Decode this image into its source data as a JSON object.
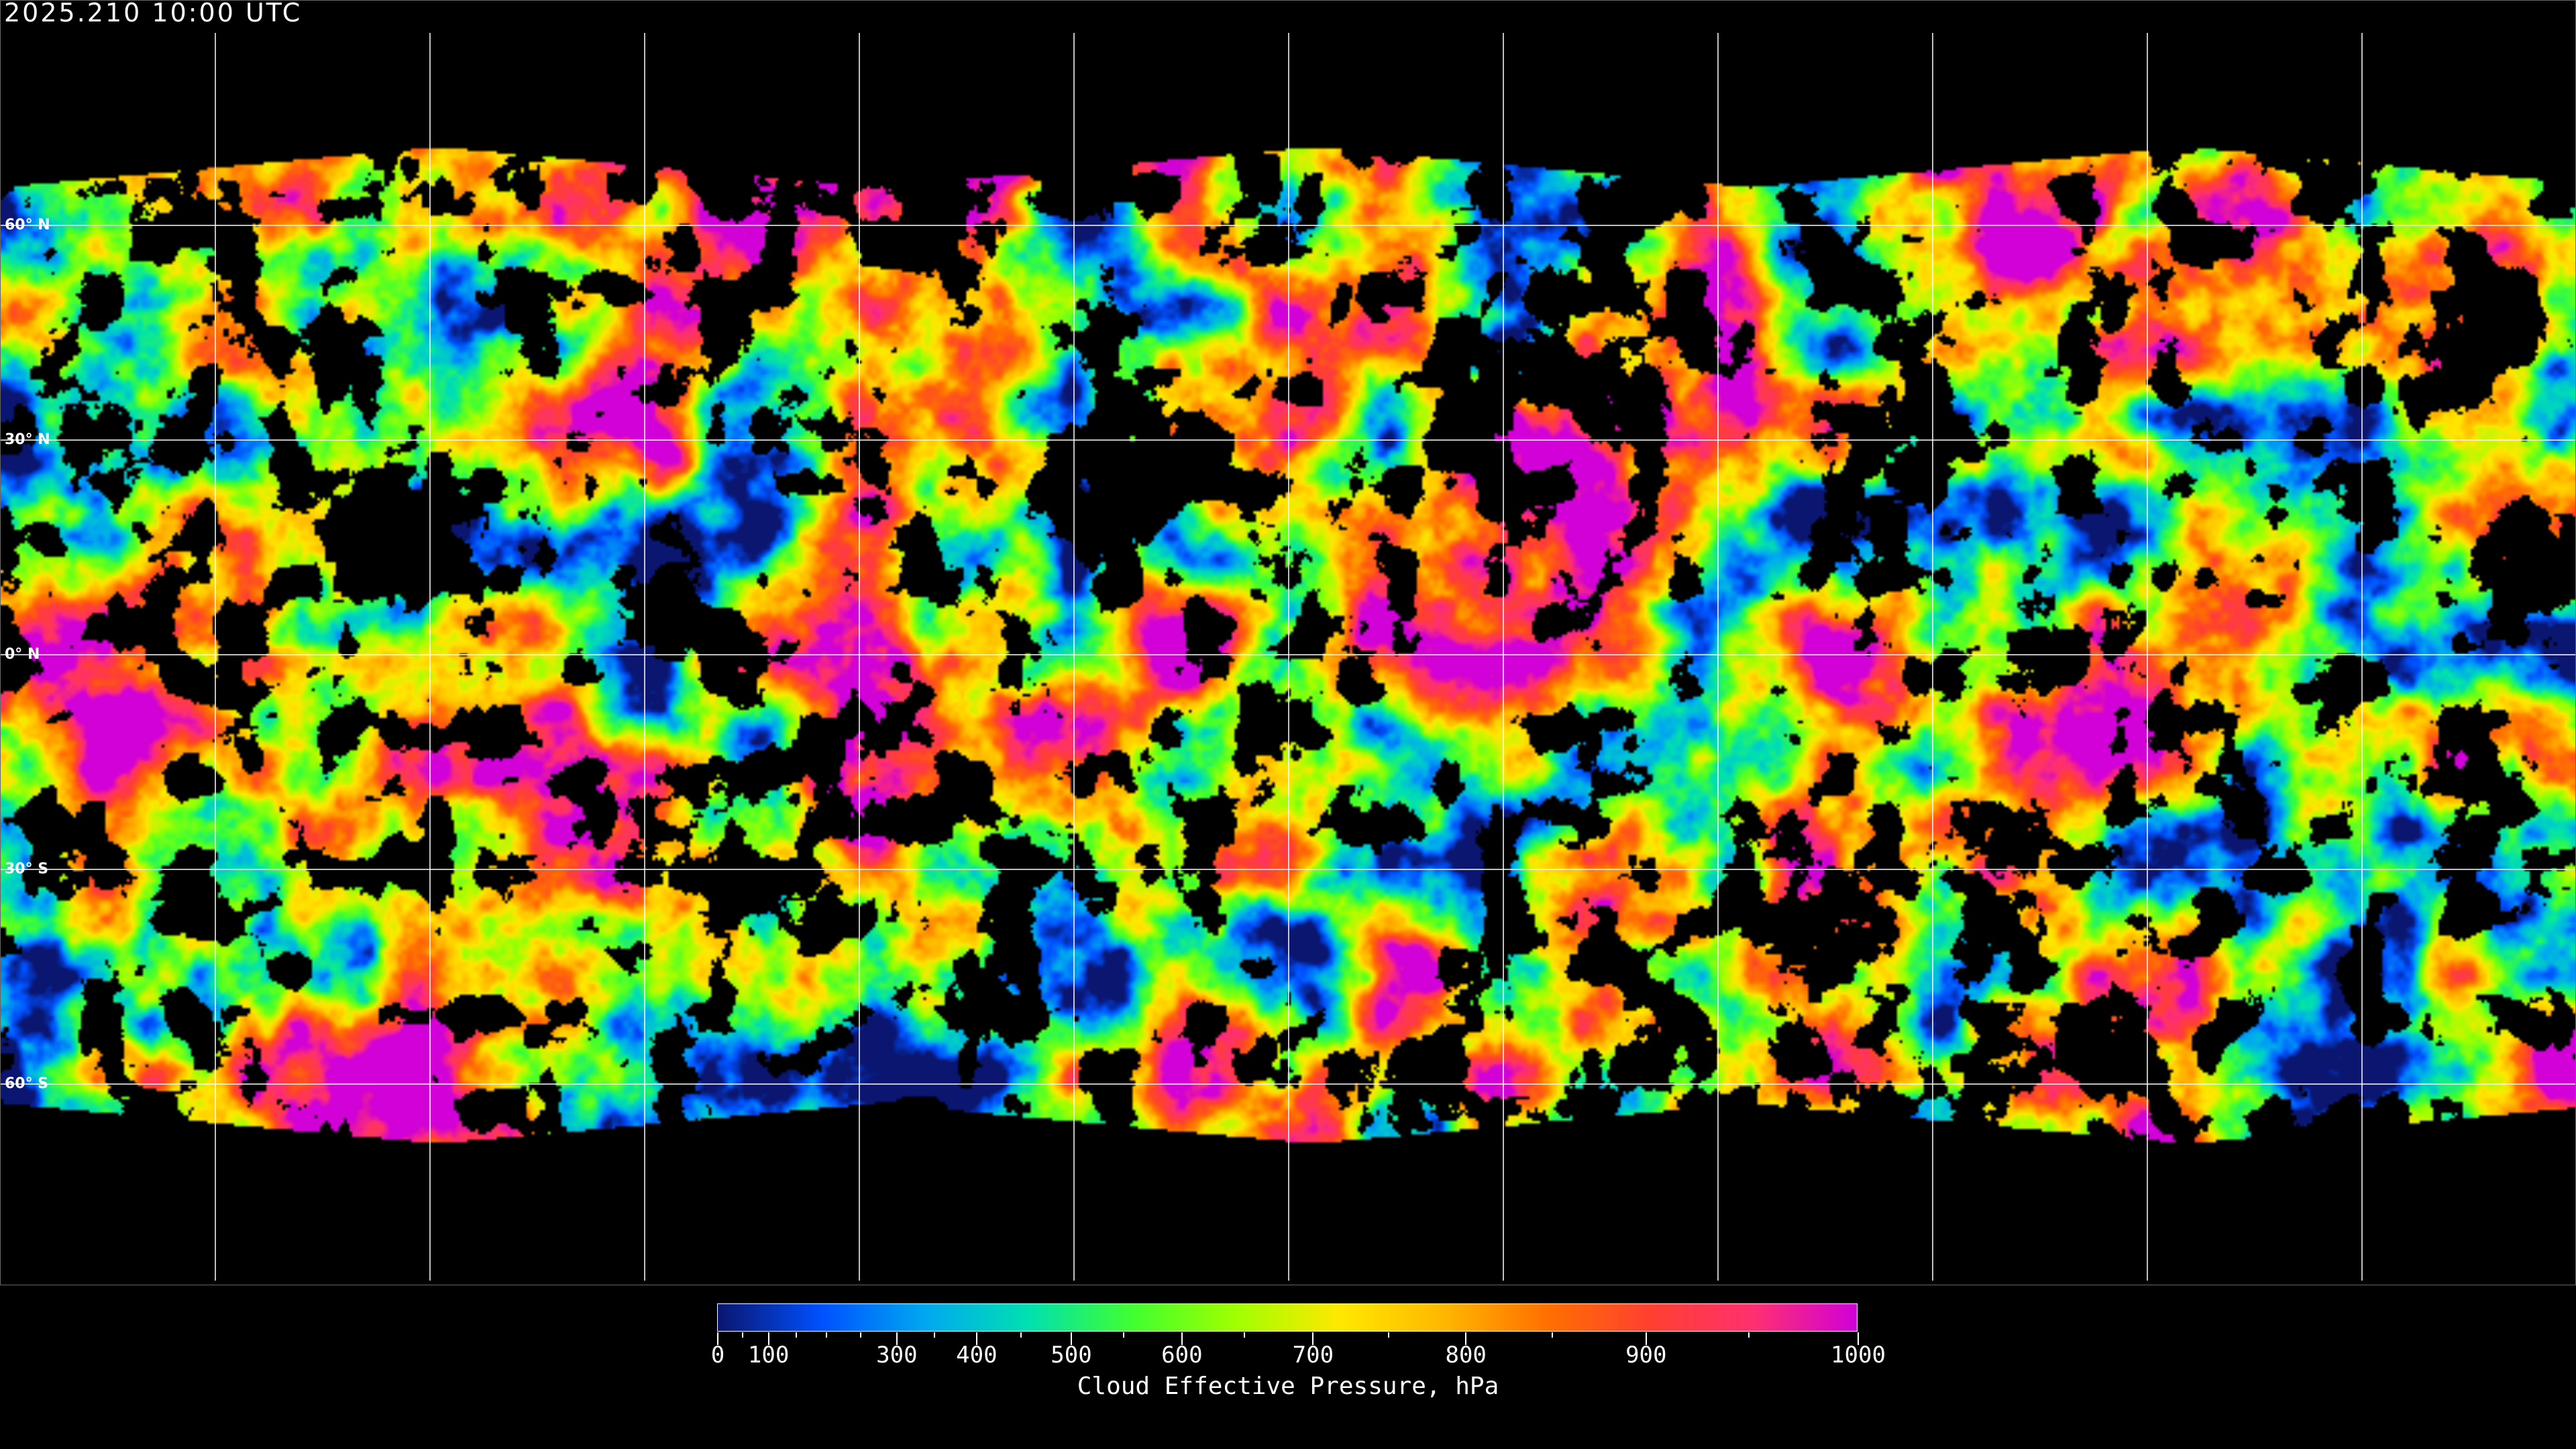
{
  "header": {
    "timestamp": "2025.210 10:00 UTC"
  },
  "map": {
    "projection": "equirectangular",
    "graticule": "white",
    "latitude_labels": [
      "60° N",
      "30° N",
      "0° N",
      "30° S",
      "60° S"
    ],
    "polar_regions": "no data (black)"
  },
  "colorbar": {
    "title": "Cloud Effective Pressure, hPa",
    "range": [
      0,
      1000
    ],
    "tick_labels": [
      "0",
      "100",
      "300",
      "400",
      "500",
      "600",
      "700",
      "800",
      "900",
      "1000"
    ],
    "colormap": [
      "#0a1670",
      "#0050ff",
      "#00a8f0",
      "#00e0b0",
      "#40ff30",
      "#a0ff00",
      "#ffe800",
      "#ffb800",
      "#ff7000",
      "#ff4030",
      "#ff3070",
      "#d000d8"
    ]
  }
}
